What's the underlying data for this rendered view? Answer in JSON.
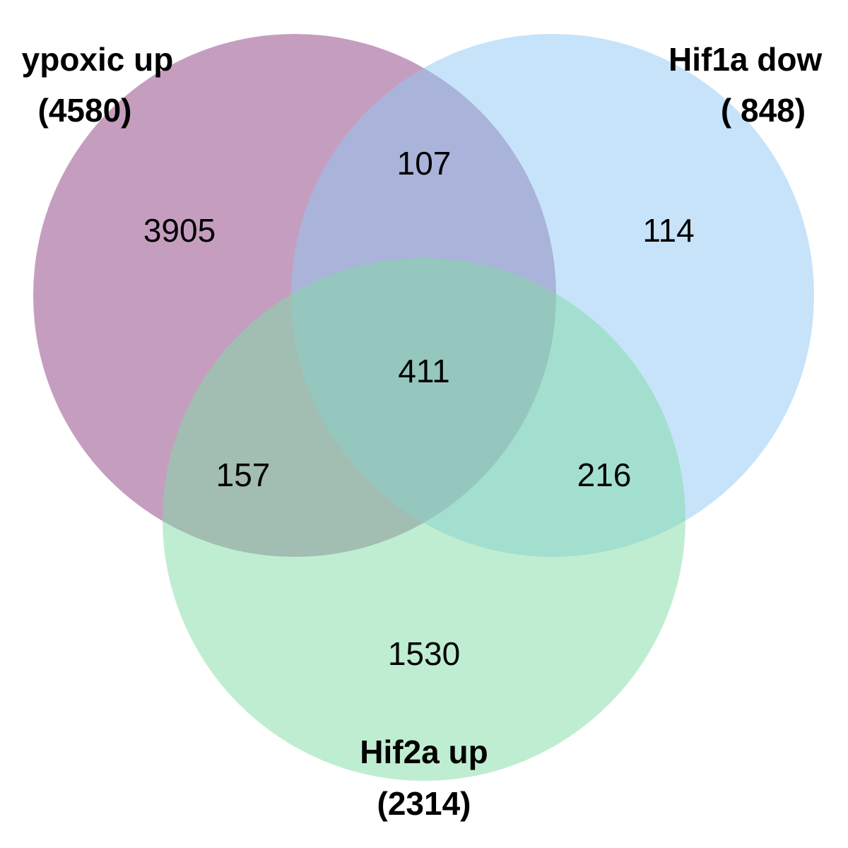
{
  "sets": [
    {
      "id": "A",
      "label": "ypoxic up",
      "total": "(4580)",
      "color": "#8b3d7f"
    },
    {
      "id": "B",
      "label": "Hif1a dow",
      "total": "( 848)",
      "color": "#90c8f6"
    },
    {
      "id": "C",
      "label": "Hif2a up",
      "total": "(2314)",
      "color": "#7fdca4"
    }
  ],
  "regions": {
    "a_only": "3905",
    "b_only": "114",
    "c_only": "1530",
    "ab": "107",
    "ac": "157",
    "bc": "216",
    "abc": "411"
  }
}
